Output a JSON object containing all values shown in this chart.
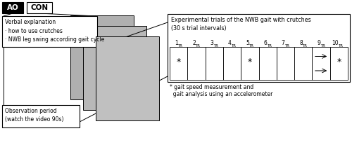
{
  "fig_width": 5.0,
  "fig_height": 2.37,
  "dpi": 100,
  "background_color": "#ffffff",
  "ao_label": "AO",
  "con_label": "CON",
  "verbal_text": "Verbal explanation\n· how to use crutches\n· NWB leg swing according gait cycle",
  "obs_text": "Observation period\n(watch the video 90s)",
  "trial_header": "Experimental trials of the NWB gait with crutches\n(30 s trial intervals)",
  "trial_labels": [
    "1",
    "2",
    "3",
    "4",
    "5",
    "6",
    "7",
    "8",
    "9",
    "10"
  ],
  "trial_sub": "TR",
  "asterisk_trials": [
    0,
    4,
    9
  ],
  "arrow_col": 8,
  "footnote": "* gait speed measurement and\n  gait analysis using an accelerometer",
  "footnote_fontsize": 5.5,
  "label_fontsize": 7.0,
  "small_fontsize": 6.0,
  "tiny_fontsize": 5.0
}
